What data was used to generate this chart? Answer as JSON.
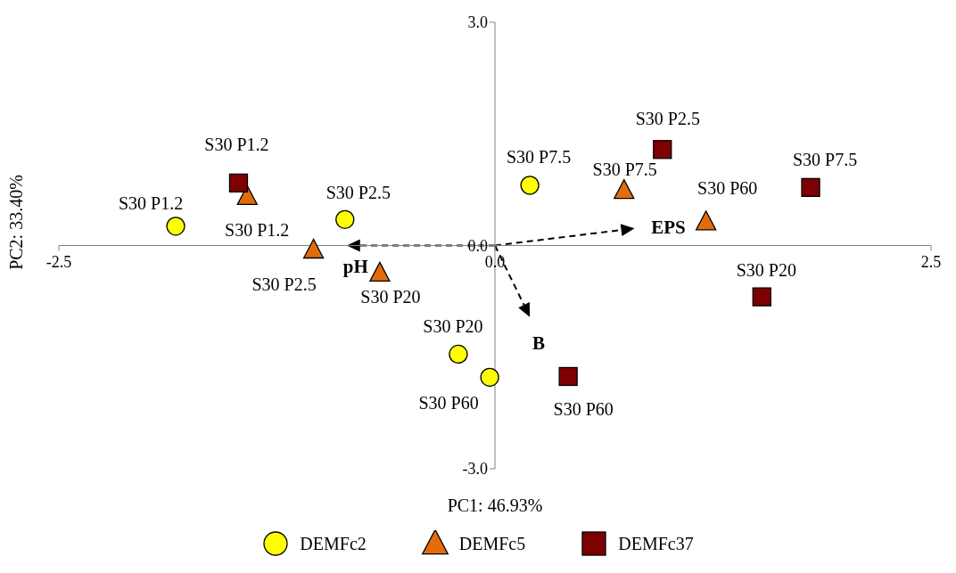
{
  "chart_data": {
    "type": "scatter",
    "xlabel": "PC1: 46.93%",
    "ylabel": "PC2: 33.40%",
    "xlim": [
      -2.5,
      2.5
    ],
    "xticks": [
      -2.5,
      {
        "value": 0,
        "label": "0.0"
      },
      2.5
    ],
    "ylim": [
      -3,
      3
    ],
    "yticks": [
      {
        "value": -3,
        "label": "-3.0"
      },
      {
        "value": 0,
        "label": "0.0"
      },
      {
        "value": 3,
        "label": "3.0"
      }
    ],
    "legend": "bottom",
    "series": [
      {
        "name": "DEMFc2",
        "color": "#ffff00",
        "marker": "circle",
        "x": [
          -1.83,
          -0.86,
          0.2,
          -0.21,
          -0.03
        ],
        "values": [
          0.26,
          0.35,
          0.81,
          -1.46,
          -1.77
        ],
        "value_labels": [
          "S30 P1.2",
          "S30 P2.5",
          "S30 P7.5",
          "S30 P20",
          "S30 P60"
        ]
      },
      {
        "name": "DEMFc5",
        "color": "#e36c0a",
        "marker": "triangle",
        "x": [
          -1.42,
          -1.04,
          -0.66,
          0.74,
          1.21
        ],
        "values": [
          0.66,
          -0.06,
          -0.37,
          0.74,
          0.32
        ],
        "value_labels": [
          "S30 P1.2",
          "S30 P2.5",
          "S30 P20",
          "S30 P7.5",
          "S30 P60"
        ]
      },
      {
        "name": "DEMFc37",
        "color": "#7f0000",
        "marker": "square",
        "x": [
          -1.47,
          0.96,
          1.81,
          1.53,
          0.42
        ],
        "values": [
          0.84,
          1.29,
          0.78,
          -0.69,
          -1.76
        ],
        "value_labels": [
          "S30 P1.2",
          "S30 P2.5",
          "S30 P7.5",
          "S30 P20",
          "S30 P60"
        ]
      }
    ],
    "annotations": [
      "pH",
      "EPS",
      "B"
    ]
  }
}
